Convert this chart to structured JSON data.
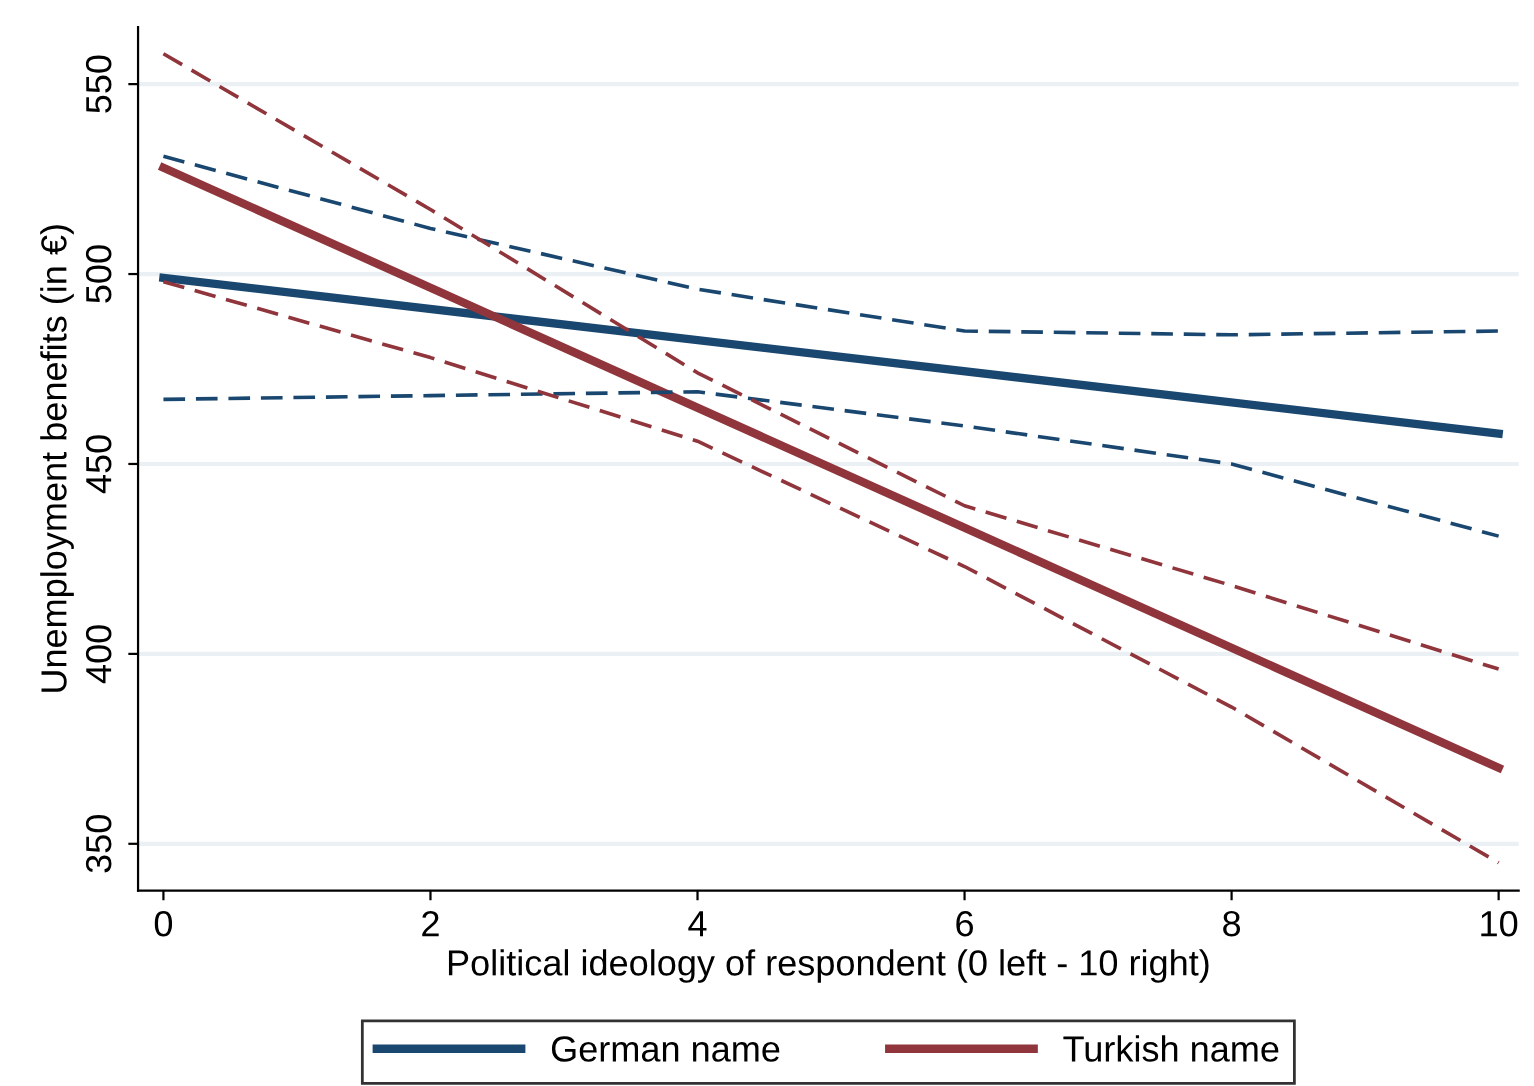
{
  "chart_data": {
    "type": "line",
    "xlabel": "Political ideology of respondent (0 left - 10 right)",
    "ylabel": "Unemployment benefits (in €)",
    "xlim": [
      -0.19,
      10.15
    ],
    "ylim": [
      337.7,
      565
    ],
    "xticks": [
      0,
      2,
      4,
      6,
      8,
      10
    ],
    "yticks": [
      350,
      400,
      450,
      500,
      550
    ],
    "grid": "y",
    "legend": "bottom",
    "series": [
      {
        "name": "German name",
        "color": "#1a476f",
        "x": [
          0,
          10
        ],
        "values": [
          499,
          458
        ],
        "line_style": "solid"
      },
      {
        "name": "Turkish name",
        "color": "#90353b",
        "x": [
          0,
          10
        ],
        "values": [
          528,
          370
        ],
        "line_style": "solid"
      },
      {
        "color": "#1a476f",
        "x": [
          0,
          2,
          4,
          6,
          8,
          10
        ],
        "values": [
          531,
          512,
          496,
          485,
          484,
          485
        ],
        "line_style": "dashed"
      },
      {
        "color": "#1a476f",
        "x": [
          0,
          2,
          4,
          6,
          8,
          10
        ],
        "values": [
          467,
          468,
          469,
          460,
          450,
          431
        ],
        "line_style": "dashed"
      },
      {
        "color": "#90353b",
        "x": [
          0,
          2,
          4,
          6,
          8,
          10
        ],
        "values": [
          558,
          517,
          474,
          439,
          418,
          396
        ],
        "line_style": "dashed"
      },
      {
        "color": "#90353b",
        "x": [
          0,
          2,
          4,
          6,
          8,
          10
        ],
        "values": [
          498,
          478,
          456,
          423,
          386,
          345
        ],
        "line_style": "dashed"
      }
    ]
  }
}
